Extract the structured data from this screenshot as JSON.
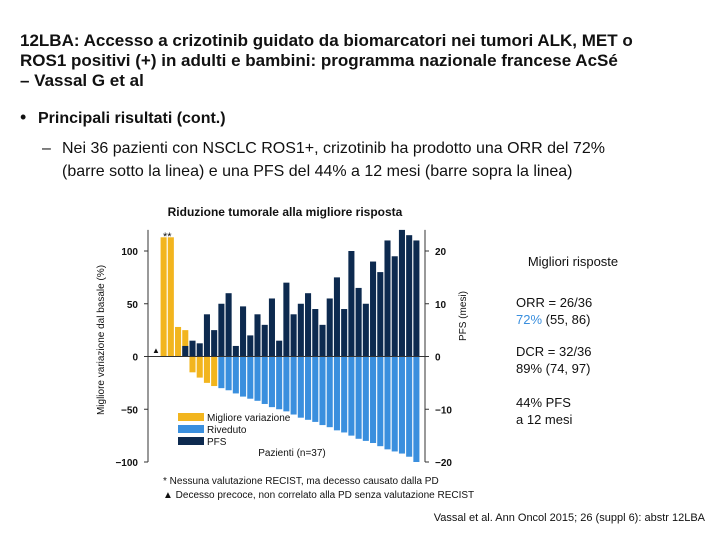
{
  "slide": {
    "title": [
      "12LBA: Accesso a crizotinib guidato da biomarcatori nei tumori ALK, MET o",
      "ROS1 positivi (+) in adulti e bambini: programma nazionale francese AcSé",
      "– Vassal G et al"
    ],
    "bullet": "Principali risultati (cont.)",
    "subbullet": [
      "Nei 36 pazienti con NSCLC ROS1+, crizotinib ha prodotto una ORR del 72%",
      "(barre sotto la linea) e una PFS del 44% a 12 mesi (barre sopra la linea)"
    ],
    "source": "Vassal et al. Ann Oncol 2015; 26 (suppl 6): abstr 12LBA"
  },
  "side_panel": {
    "heading": "Migliori risposte",
    "orr": "ORR = 26/36",
    "orr_pct": "72%",
    "orr_ci": "(55, 86)",
    "dcr": "DCR = 32/36",
    "dcr_ci": "89% (74, 97)",
    "pfs": [
      "44% PFS",
      "a 12 mesi"
    ]
  },
  "chart_data": {
    "type": "bar",
    "title": "Riduzione tumorale alla migliore risposta",
    "y_label": "Migliore variazione dal basale (%)",
    "y2_label": "PFS (mesi)",
    "x_label": "Pazienti (n=37)",
    "categories": [
      null,
      null,
      null,
      null,
      null,
      null,
      null,
      null,
      null,
      null,
      null,
      null,
      null,
      null,
      null,
      null,
      null,
      null,
      null,
      null,
      null,
      null,
      null,
      null,
      null,
      null,
      null,
      null,
      null,
      null,
      null,
      null,
      null,
      null,
      null,
      null
    ],
    "series": [
      {
        "name": "Migliore variazione",
        "color": "#f2b51e",
        "values": [
          113,
          113,
          28,
          25,
          -15,
          -20,
          -25,
          -28,
          null,
          null,
          null,
          null,
          null,
          null,
          null,
          null,
          null,
          null,
          null,
          null,
          null,
          null,
          null,
          null,
          null,
          null,
          null,
          null,
          null,
          null,
          null,
          null,
          null,
          null,
          null,
          null
        ]
      },
      {
        "name": "Riveduto",
        "color": "#3a8fde",
        "values": [
          null,
          null,
          null,
          null,
          null,
          null,
          null,
          null,
          -30,
          -32,
          -35,
          -38,
          -40,
          -42,
          -45,
          -48,
          -50,
          -52,
          -55,
          -58,
          -60,
          -62,
          -65,
          -67,
          -70,
          -72,
          -75,
          -78,
          -80,
          -82,
          -85,
          -88,
          -90,
          -92,
          -95,
          -100
        ]
      },
      {
        "name": "PFS",
        "color": "#0d2a4f",
        "axis": "y2",
        "values": [
          null,
          null,
          null,
          2,
          3,
          2.5,
          8,
          5,
          10,
          12,
          2,
          9.5,
          4,
          8,
          6,
          11,
          3,
          14,
          8,
          10,
          12,
          9,
          6,
          11,
          15,
          9,
          20,
          13,
          10,
          18,
          16,
          22,
          19,
          24,
          23,
          22
        ]
      }
    ],
    "ylim": [
      -100,
      120
    ],
    "yticks": [
      100,
      50,
      0,
      {
        "value": -50,
        "label": "−50"
      },
      {
        "value": -100,
        "label": "−100"
      }
    ],
    "y2lim": [
      -20,
      24
    ],
    "y2ticks": [
      20,
      10,
      0,
      {
        "value": -10,
        "label": "−10"
      },
      {
        "value": -20,
        "label": "−20"
      }
    ],
    "annotations": [
      "**",
      "▲"
    ],
    "notes": [
      "*  Nessuna valutazione RECIST, ma decesso causato dalla PD",
      "▲  Decesso precoce, non correlato alla PD senza valutazione RECIST"
    ]
  }
}
